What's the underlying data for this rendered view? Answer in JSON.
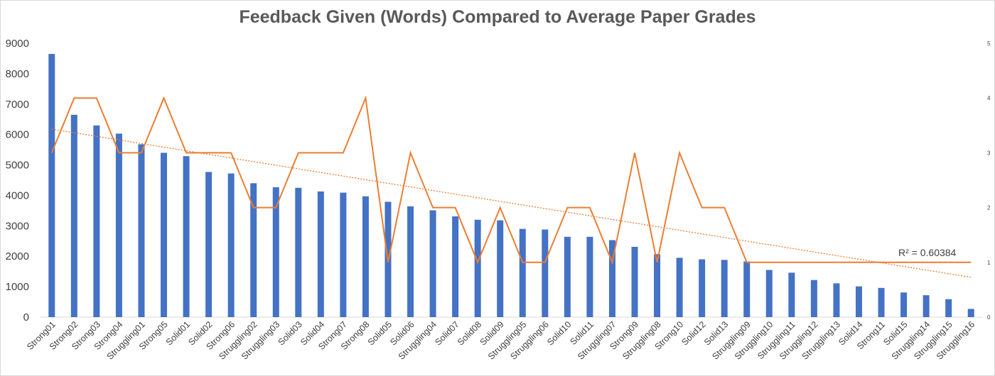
{
  "chart_data": {
    "type": "bar",
    "title": "Feedback Given (Words) Compared to Average Paper Grades",
    "categories": [
      "Strong01",
      "Strong02",
      "Strong03",
      "Strong04",
      "Struggling01",
      "Strong05",
      "Solid01",
      "Solid02",
      "Strong06",
      "Struggling02",
      "Struggling03",
      "Solid03",
      "Solid04",
      "Strong07",
      "Strong08",
      "Solid05",
      "Solid06",
      "Struggling04",
      "Solid07",
      "Solid08",
      "Solid09",
      "Struggling05",
      "Struggling06",
      "Solid10",
      "Solid11",
      "Struggling07",
      "Strong09",
      "Struggling08",
      "Strong10",
      "Solid12",
      "Solid13",
      "Struggling09",
      "Struggling10",
      "Struggling11",
      "Struggling12",
      "Struggling13",
      "Solid14",
      "Strong11",
      "Solid15",
      "Struggling14",
      "Struggling15",
      "Struggling16"
    ],
    "series": [
      {
        "type": "bar",
        "color": "#4472c4",
        "axis": "primary",
        "values": [
          8650,
          6650,
          6300,
          6030,
          5680,
          5400,
          5290,
          4770,
          4720,
          4400,
          4270,
          4250,
          4130,
          4090,
          3970,
          3790,
          3640,
          3510,
          3310,
          3200,
          3180,
          2900,
          2880,
          2640,
          2640,
          2530,
          2310,
          2070,
          1950,
          1900,
          1880,
          1830,
          1550,
          1460,
          1220,
          1110,
          1010,
          960,
          810,
          720,
          590,
          270
        ]
      },
      {
        "type": "line",
        "color": "#ed7d31",
        "axis": "secondary",
        "values": [
          3,
          4,
          4,
          3,
          3,
          4,
          3,
          3,
          3,
          2,
          2,
          3,
          3,
          3,
          4,
          1,
          3,
          2,
          2,
          1,
          2,
          1,
          1,
          2,
          2,
          1,
          3,
          1,
          3,
          2,
          2,
          1,
          1,
          1,
          1,
          1,
          1,
          1,
          1,
          1,
          1,
          1
        ]
      }
    ],
    "trendline": {
      "type": "linear",
      "color": "#ed7d31",
      "style": "dotted",
      "y_start": 6180,
      "y_end": 1310,
      "label": "R² = 0.60384"
    },
    "y_axis": {
      "ylim": [
        0,
        9000
      ],
      "ticks": [
        "0",
        "1000",
        "2000",
        "3000",
        "4000",
        "5000",
        "6000",
        "7000",
        "8000",
        "9000"
      ]
    },
    "y2_axis": {
      "ylim": [
        0,
        5
      ],
      "ticks": [
        "0",
        "1",
        "2",
        "3",
        "4",
        "5"
      ]
    },
    "grid": false,
    "legend": "none"
  }
}
